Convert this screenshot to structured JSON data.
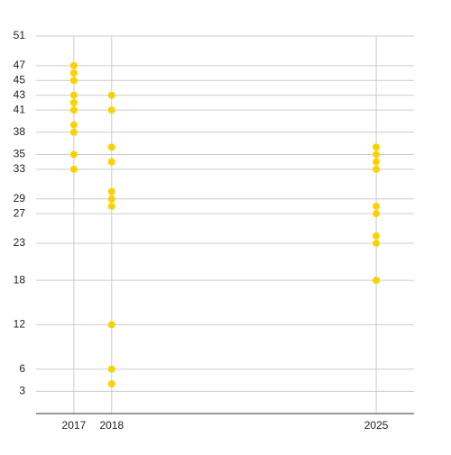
{
  "chart_data": {
    "type": "scatter",
    "x": [
      2017,
      2017,
      2017,
      2017,
      2017,
      2017,
      2017,
      2017,
      2017,
      2017,
      2018,
      2018,
      2018,
      2018,
      2018,
      2018,
      2018,
      2018,
      2018,
      2018,
      2025,
      2025,
      2025,
      2025,
      2025,
      2025,
      2025,
      2025,
      2025
    ],
    "values": [
      47,
      46,
      45,
      43,
      42,
      41,
      39,
      38,
      35,
      33,
      43,
      41,
      36,
      34,
      30,
      29,
      28,
      12,
      6,
      4,
      36,
      35,
      34,
      33,
      28,
      27,
      24,
      23,
      18
    ],
    "color": "#fcd100",
    "xlim": [
      2016,
      2026
    ],
    "xticks": [
      2017,
      2018,
      2025
    ],
    "ylim": [
      0,
      51
    ],
    "yticks": [
      3,
      6,
      12,
      18,
      23,
      27,
      29,
      33,
      35,
      38,
      41,
      43,
      45,
      47,
      51
    ],
    "grid": true
  }
}
